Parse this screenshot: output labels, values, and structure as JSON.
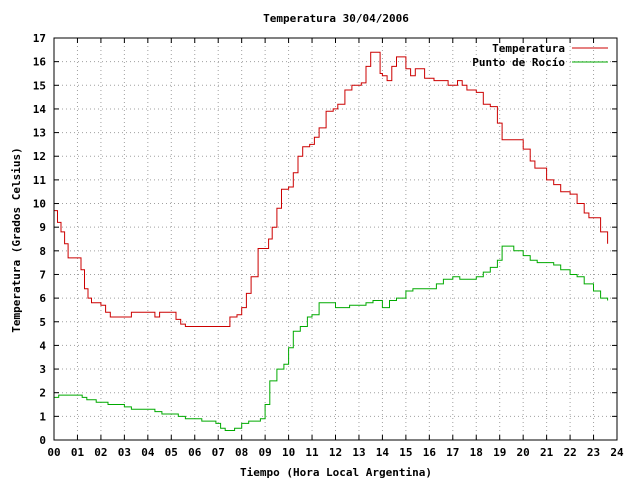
{
  "chart_data": {
    "type": "line",
    "title": "Temperatura 30/04/2006",
    "xlabel": "Tiempo (Hora Local Argentina)",
    "ylabel": "Temperatura (Grados Celsius)",
    "xlim": [
      0,
      24
    ],
    "ylim": [
      0,
      17
    ],
    "x_ticks": [
      0,
      1,
      2,
      3,
      4,
      5,
      6,
      7,
      8,
      9,
      10,
      11,
      12,
      13,
      14,
      15,
      16,
      17,
      18,
      19,
      20,
      21,
      22,
      23,
      24
    ],
    "x_tick_labels": [
      "00",
      "01",
      "02",
      "03",
      "04",
      "05",
      "06",
      "07",
      "08",
      "09",
      "10",
      "11",
      "12",
      "13",
      "14",
      "15",
      "16",
      "17",
      "18",
      "19",
      "20",
      "21",
      "22",
      "23",
      "24"
    ],
    "y_ticks": [
      0,
      1,
      2,
      3,
      4,
      5,
      6,
      7,
      8,
      9,
      10,
      11,
      12,
      13,
      14,
      15,
      16,
      17
    ],
    "y_tick_labels": [
      "0",
      "1",
      "2",
      "3",
      "4",
      "5",
      "6",
      "7",
      "8",
      "9",
      "10",
      "11",
      "12",
      "13",
      "14",
      "15",
      "16",
      "17"
    ],
    "grid": true,
    "legend_position": "top-right",
    "series": [
      {
        "name": "Temperatura",
        "color": "#cc0000",
        "x": [
          0,
          0.15,
          0.3,
          0.45,
          0.6,
          1.0,
          1.15,
          1.3,
          1.45,
          1.6,
          2.0,
          2.2,
          2.4,
          2.6,
          3.0,
          3.3,
          3.6,
          4.0,
          4.3,
          4.5,
          4.7,
          5.0,
          5.2,
          5.4,
          5.6,
          6.0,
          6.5,
          7.0,
          7.2,
          7.5,
          7.8,
          8.0,
          8.2,
          8.4,
          8.7,
          9.0,
          9.15,
          9.3,
          9.5,
          9.7,
          10.0,
          10.2,
          10.4,
          10.6,
          10.9,
          11.1,
          11.3,
          11.6,
          11.9,
          12.1,
          12.4,
          12.7,
          12.9,
          13.1,
          13.3,
          13.5,
          13.7,
          13.9,
          14.0,
          14.2,
          14.4,
          14.6,
          14.8,
          15.0,
          15.2,
          15.4,
          15.6,
          15.8,
          16.0,
          16.2,
          16.4,
          16.6,
          16.8,
          17.0,
          17.2,
          17.4,
          17.6,
          17.8,
          18.0,
          18.3,
          18.6,
          18.9,
          19.1,
          19.3,
          19.5,
          19.8,
          20.0,
          20.3,
          20.5,
          20.8,
          21.0,
          21.3,
          21.6,
          21.8,
          22.0,
          22.3,
          22.6,
          22.8,
          23.0,
          23.3,
          23.6
        ],
        "y": [
          9.7,
          9.2,
          8.8,
          8.3,
          7.7,
          7.7,
          7.2,
          6.4,
          6.0,
          5.8,
          5.7,
          5.4,
          5.2,
          5.2,
          5.2,
          5.4,
          5.4,
          5.4,
          5.2,
          5.4,
          5.4,
          5.4,
          5.1,
          4.9,
          4.8,
          4.8,
          4.8,
          4.8,
          4.8,
          5.2,
          5.3,
          5.6,
          6.2,
          6.9,
          8.1,
          8.1,
          8.5,
          9.0,
          9.8,
          10.6,
          10.7,
          11.3,
          12.0,
          12.4,
          12.5,
          12.8,
          13.2,
          13.9,
          14.0,
          14.2,
          14.8,
          15.0,
          15.0,
          15.1,
          15.8,
          16.4,
          16.4,
          15.5,
          15.4,
          15.2,
          15.8,
          16.2,
          16.2,
          15.7,
          15.4,
          15.7,
          15.7,
          15.3,
          15.3,
          15.2,
          15.2,
          15.2,
          15.0,
          15.0,
          15.2,
          15.0,
          14.8,
          14.8,
          14.7,
          14.2,
          14.1,
          13.4,
          12.7,
          12.7,
          12.7,
          12.7,
          12.3,
          11.8,
          11.5,
          11.5,
          11.0,
          10.8,
          10.5,
          10.5,
          10.4,
          10.0,
          9.6,
          9.4,
          9.4,
          8.8,
          8.3
        ]
      },
      {
        "name": "Punto de Rocío",
        "color": "#00aa00",
        "x": [
          0,
          0.2,
          0.4,
          0.6,
          0.8,
          1.0,
          1.2,
          1.4,
          1.6,
          1.8,
          2.0,
          2.3,
          2.6,
          3.0,
          3.3,
          3.6,
          4.0,
          4.3,
          4.6,
          5.0,
          5.3,
          5.6,
          6.0,
          6.3,
          6.6,
          6.9,
          7.1,
          7.3,
          7.5,
          7.7,
          8.0,
          8.3,
          8.6,
          8.8,
          9.0,
          9.2,
          9.5,
          9.8,
          10.0,
          10.2,
          10.5,
          10.8,
          11.0,
          11.3,
          11.6,
          12.0,
          12.3,
          12.6,
          13.0,
          13.3,
          13.6,
          14.0,
          14.3,
          14.6,
          15.0,
          15.3,
          15.6,
          16.0,
          16.3,
          16.6,
          17.0,
          17.3,
          17.6,
          18.0,
          18.3,
          18.6,
          18.9,
          19.1,
          19.3,
          19.6,
          20.0,
          20.3,
          20.6,
          21.0,
          21.3,
          21.6,
          22.0,
          22.3,
          22.6,
          23.0,
          23.3,
          23.6
        ],
        "y": [
          1.8,
          1.9,
          1.9,
          1.9,
          1.9,
          1.9,
          1.8,
          1.7,
          1.7,
          1.6,
          1.6,
          1.5,
          1.5,
          1.4,
          1.3,
          1.3,
          1.3,
          1.2,
          1.1,
          1.1,
          1.0,
          0.9,
          0.9,
          0.8,
          0.8,
          0.7,
          0.5,
          0.4,
          0.4,
          0.5,
          0.7,
          0.8,
          0.8,
          0.9,
          1.5,
          2.5,
          3.0,
          3.2,
          3.9,
          4.6,
          4.8,
          5.2,
          5.3,
          5.8,
          5.8,
          5.6,
          5.6,
          5.7,
          5.7,
          5.8,
          5.9,
          5.6,
          5.9,
          6.0,
          6.3,
          6.4,
          6.4,
          6.4,
          6.6,
          6.8,
          6.9,
          6.8,
          6.8,
          6.9,
          7.1,
          7.3,
          7.6,
          8.2,
          8.2,
          8.0,
          7.8,
          7.6,
          7.5,
          7.5,
          7.4,
          7.2,
          7.0,
          6.9,
          6.6,
          6.3,
          6.0,
          5.9
        ]
      }
    ]
  }
}
